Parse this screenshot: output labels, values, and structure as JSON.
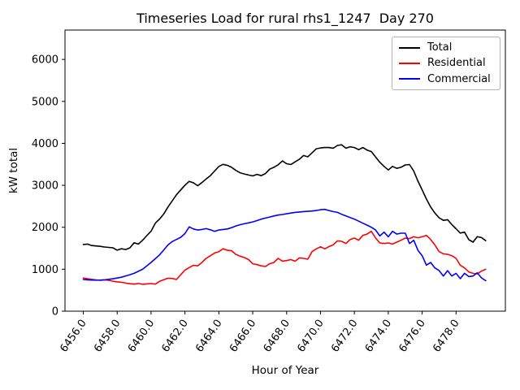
{
  "figure": {
    "title": "Timeseries Load for rural rhs1_1247  Day 270",
    "xlabel": "Hour of Year",
    "ylabel": "kW total"
  },
  "legend": {
    "items": [
      {
        "label": "Total",
        "color": "#000000"
      },
      {
        "label": "Residential",
        "color": "#ff0000"
      },
      {
        "label": "Commercial",
        "color": "#0000ff"
      }
    ]
  },
  "chart_data": {
    "type": "line",
    "title": "Timeseries Load for rural rhs1_1247  Day 270",
    "xlabel": "Hour of Year",
    "ylabel": "kW total",
    "xlim": [
      6454.92,
      6480.91
    ],
    "ylim": [
      0,
      6700
    ],
    "x_ticks": [
      "6456.0",
      "6458.0",
      "6460.0",
      "6462.0",
      "6464.0",
      "6466.0",
      "6468.0",
      "6470.0",
      "6472.0",
      "6474.0",
      "6476.0",
      "6478.0"
    ],
    "y_ticks": [
      "0",
      "1000",
      "2000",
      "3000",
      "4000",
      "5000",
      "6000"
    ],
    "x_start": 6456.0,
    "x_step": 0.25,
    "legend_position": "upper right",
    "grid": false,
    "series": [
      {
        "name": "Total",
        "color": "#000000",
        "values": [
          1590,
          1600,
          1565,
          1555,
          1545,
          1530,
          1520,
          1510,
          1455,
          1490,
          1470,
          1510,
          1630,
          1600,
          1690,
          1800,
          1905,
          2100,
          2195,
          2320,
          2485,
          2630,
          2775,
          2890,
          3000,
          3095,
          3060,
          2990,
          3065,
          3150,
          3230,
          3340,
          3450,
          3500,
          3475,
          3430,
          3355,
          3300,
          3270,
          3245,
          3225,
          3260,
          3230,
          3280,
          3385,
          3430,
          3490,
          3580,
          3515,
          3495,
          3560,
          3620,
          3710,
          3680,
          3775,
          3870,
          3890,
          3900,
          3900,
          3885,
          3950,
          3965,
          3885,
          3920,
          3900,
          3850,
          3900,
          3840,
          3805,
          3675,
          3550,
          3450,
          3365,
          3450,
          3405,
          3430,
          3485,
          3495,
          3340,
          3100,
          2890,
          2675,
          2485,
          2340,
          2225,
          2165,
          2180,
          2065,
          1965,
          1860,
          1885,
          1705,
          1645,
          1775,
          1755,
          1680
        ]
      },
      {
        "name": "Residential",
        "color": "#ff0000",
        "values": [
          790,
          775,
          760,
          745,
          735,
          745,
          735,
          715,
          700,
          690,
          670,
          655,
          645,
          660,
          640,
          650,
          658,
          645,
          710,
          750,
          787,
          780,
          755,
          870,
          980,
          1040,
          1095,
          1080,
          1160,
          1258,
          1320,
          1387,
          1420,
          1490,
          1450,
          1440,
          1355,
          1310,
          1280,
          1230,
          1130,
          1110,
          1080,
          1065,
          1130,
          1160,
          1258,
          1193,
          1206,
          1230,
          1190,
          1270,
          1258,
          1240,
          1420,
          1485,
          1535,
          1485,
          1540,
          1580,
          1677,
          1665,
          1613,
          1710,
          1742,
          1690,
          1806,
          1838,
          1903,
          1742,
          1626,
          1613,
          1626,
          1600,
          1645,
          1690,
          1742,
          1730,
          1774,
          1750,
          1774,
          1806,
          1709,
          1580,
          1420,
          1368,
          1355,
          1322,
          1258,
          1096,
          1032,
          935,
          903,
          890,
          955,
          1000
        ]
      },
      {
        "name": "Commercial",
        "color": "#0000ff",
        "values": [
          755,
          748,
          742,
          740,
          742,
          748,
          760,
          772,
          790,
          810,
          840,
          870,
          903,
          950,
          1000,
          1080,
          1161,
          1250,
          1341,
          1460,
          1580,
          1660,
          1709,
          1760,
          1850,
          2010,
          1960,
          1935,
          1948,
          1967,
          1940,
          1903,
          1935,
          1948,
          1960,
          1990,
          2032,
          2060,
          2084,
          2105,
          2129,
          2160,
          2193,
          2220,
          2245,
          2270,
          2290,
          2305,
          2322,
          2340,
          2355,
          2365,
          2374,
          2380,
          2387,
          2400,
          2419,
          2426,
          2400,
          2375,
          2355,
          2310,
          2271,
          2230,
          2193,
          2145,
          2097,
          2050,
          2000,
          1935,
          1793,
          1884,
          1774,
          1903,
          1838,
          1858,
          1858,
          1613,
          1690,
          1451,
          1322,
          1097,
          1161,
          1032,
          967,
          838,
          967,
          838,
          903,
          774,
          903,
          825,
          838,
          916,
          793,
          729
        ]
      }
    ]
  }
}
